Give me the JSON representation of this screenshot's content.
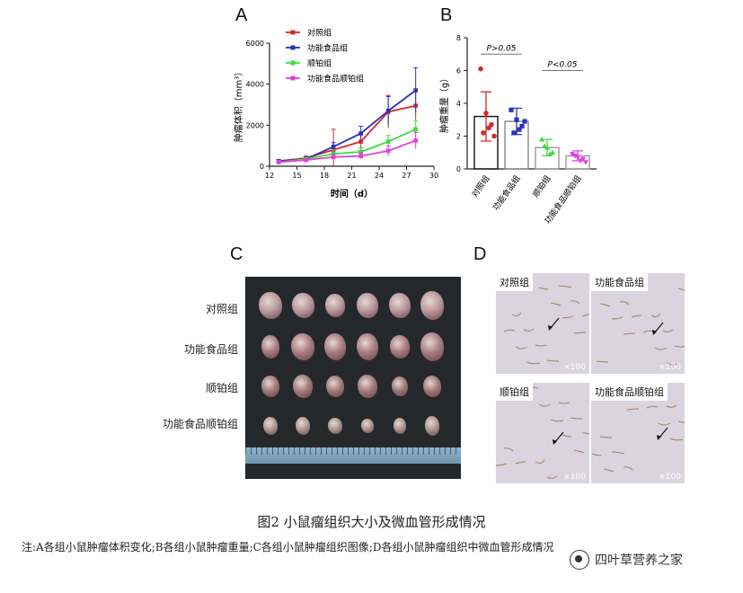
{
  "panels": {
    "A": "A",
    "B": "B",
    "C": "C",
    "D": "D"
  },
  "chart_data": [
    {
      "type": "line",
      "ylabel": "肿瘤体积（mm³）",
      "xlabel": "时间（d）",
      "x_ticks": [
        12,
        15,
        18,
        21,
        24,
        27,
        30
      ],
      "y_ticks": [
        0,
        2000,
        4000,
        6000
      ],
      "xlim": [
        12,
        30
      ],
      "ylim": [
        0,
        6000
      ],
      "series": [
        {
          "name": "对照组",
          "color": "#d42a2a",
          "x": [
            13,
            16,
            19,
            22,
            25,
            28
          ],
          "values": [
            250,
            400,
            800,
            1200,
            2650,
            2950
          ],
          "err": [
            80,
            100,
            1000,
            400,
            800,
            700
          ]
        },
        {
          "name": "功能食品组",
          "color": "#2b32b8",
          "x": [
            13,
            16,
            19,
            22,
            25,
            28
          ],
          "values": [
            250,
            350,
            950,
            1600,
            2700,
            3700
          ],
          "err": [
            80,
            120,
            200,
            350,
            700,
            1100
          ]
        },
        {
          "name": "顺铂组",
          "color": "#3ddc3d",
          "x": [
            13,
            16,
            19,
            22,
            25,
            28
          ],
          "values": [
            200,
            350,
            600,
            700,
            1200,
            1800
          ],
          "err": [
            60,
            80,
            200,
            200,
            300,
            400
          ]
        },
        {
          "name": "功能食品顺铂组",
          "color": "#e040e0",
          "x": [
            13,
            16,
            19,
            22,
            25,
            28
          ],
          "values": [
            200,
            300,
            450,
            500,
            750,
            1250
          ],
          "err": [
            60,
            80,
            150,
            150,
            250,
            400
          ]
        }
      ]
    },
    {
      "type": "bar",
      "ylabel": "肿瘤重量（g）",
      "categories": [
        "对照组",
        "功能食品组",
        "顺铂组",
        "功能食品顺铂组"
      ],
      "values": [
        3.2,
        2.9,
        1.3,
        0.8
      ],
      "err": [
        1.5,
        0.8,
        0.5,
        0.3
      ],
      "colors": [
        "#d42a2a",
        "#2b32b8",
        "#3ddc3d",
        "#e040e0"
      ],
      "y_ticks": [
        0,
        2,
        4,
        6,
        8
      ],
      "ylim": [
        0,
        8
      ],
      "points": [
        [
          6.1,
          3.4,
          2.7,
          2.2,
          2.5,
          2.0
        ],
        [
          3.6,
          3.0,
          2.6,
          2.2,
          2.4,
          2.9
        ],
        [
          1.8,
          1.3,
          1.0,
          1.4,
          0.9
        ],
        [
          0.9,
          0.7,
          0.6,
          0.8,
          0.5,
          0.4
        ]
      ],
      "annotations": [
        {
          "text": "P>0.05",
          "between": [
            0,
            1
          ]
        },
        {
          "text": "P<0.05",
          "between": [
            2,
            3
          ]
        }
      ]
    }
  ],
  "panel_c": {
    "rows": [
      "对照组",
      "功能食品组",
      "顺铂组",
      "功能食品顺铂组"
    ]
  },
  "panel_d": {
    "tiles": [
      {
        "label": "对照组",
        "mag": "×100"
      },
      {
        "label": "功能食品组",
        "mag": "×100"
      },
      {
        "label": "顺铂组",
        "mag": "×100"
      },
      {
        "label": "功能食品顺铂组",
        "mag": "×100"
      }
    ]
  },
  "caption": "图2  小鼠瘤组织大小及微血管形成情况",
  "note": "注:A各组小鼠肿瘤体积变化;B各组小鼠肿瘤重量;C各组小鼠肿瘤组织图像;D各组小鼠肿瘤组织中微血管形成情况",
  "watermark": "四叶草营养之家"
}
